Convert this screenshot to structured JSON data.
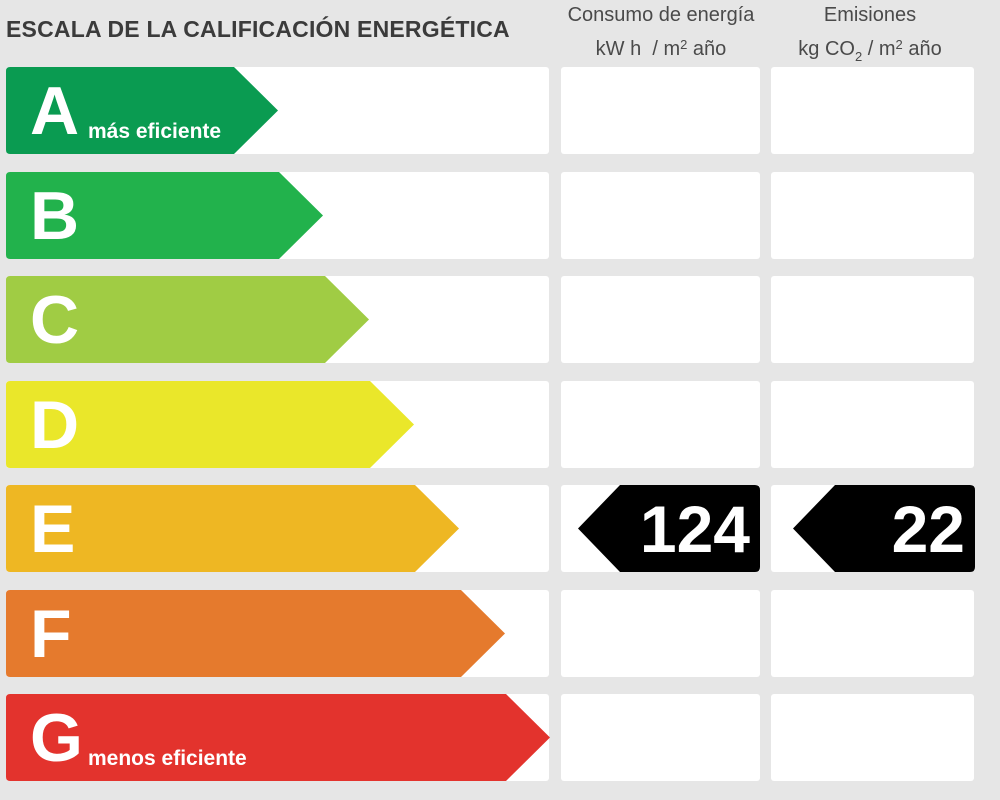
{
  "title": "ESCALA DE LA CALIFICACIÓN ENERGÉTICA",
  "columns": {
    "consumption": {
      "line1": "Consumo de energía",
      "unit_a": "kW h",
      "unit_b": "/ m",
      "unit_sup": "2",
      "unit_c": " año"
    },
    "emissions": {
      "line1": "Emisiones",
      "unit_a": "kg CO",
      "unit_sub": "2",
      "unit_b": " / m",
      "unit_sup": "2",
      "unit_c": " año"
    }
  },
  "ratings": [
    {
      "letter": "A",
      "color": "#0a9b51",
      "note": "más eficiente"
    },
    {
      "letter": "B",
      "color": "#22b24c",
      "note": ""
    },
    {
      "letter": "C",
      "color": "#a0cc44",
      "note": ""
    },
    {
      "letter": "D",
      "color": "#eae72a",
      "note": ""
    },
    {
      "letter": "E",
      "color": "#eeb723",
      "note": ""
    },
    {
      "letter": "F",
      "color": "#e57a2d",
      "note": ""
    },
    {
      "letter": "G",
      "color": "#e3332d",
      "note": "menos eficiente"
    }
  ],
  "current": {
    "rating": "E",
    "consumption_value": "124",
    "emissions_value": "22",
    "marker_color": "#000000"
  }
}
